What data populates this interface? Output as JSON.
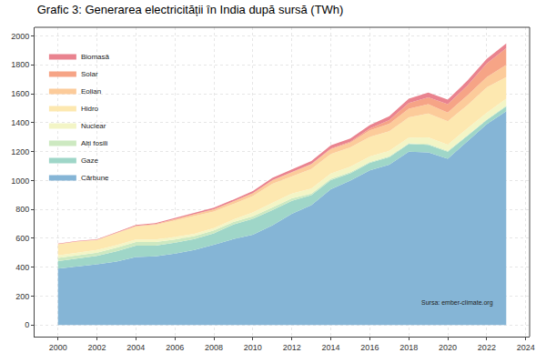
{
  "chart_data": {
    "type": "area",
    "title": "Grafic 3: Generarea electricității în India după sursă (TWh)",
    "annotations": [
      "Sursa: ember-climate.org"
    ],
    "x": [
      2000,
      2001,
      2002,
      2003,
      2004,
      2005,
      2006,
      2007,
      2008,
      2009,
      2010,
      2011,
      2012,
      2013,
      2014,
      2015,
      2016,
      2017,
      2018,
      2019,
      2020,
      2021,
      2022,
      2023
    ],
    "series": [
      {
        "name": "Cărbune",
        "color": "#85b5d6",
        "values": [
          390,
          405,
          420,
          440,
          470,
          475,
          495,
          520,
          555,
          595,
          625,
          690,
          770,
          830,
          940,
          1000,
          1070,
          1110,
          1200,
          1195,
          1150,
          1270,
          1390,
          1480
        ]
      },
      {
        "name": "Gaze",
        "color": "#9fd6c8",
        "values": [
          52,
          55,
          58,
          70,
          80,
          75,
          75,
          75,
          80,
          100,
          110,
          105,
          90,
          68,
          62,
          50,
          52,
          52,
          52,
          52,
          50,
          38,
          28,
          32
        ]
      },
      {
        "name": "Alți fosili",
        "color": "#cde9c1",
        "values": [
          22,
          22,
          22,
          25,
          25,
          25,
          22,
          20,
          20,
          18,
          18,
          18,
          16,
          12,
          10,
          8,
          7,
          6,
          6,
          6,
          5,
          5,
          5,
          6
        ]
      },
      {
        "name": "Nuclear",
        "color": "#f3f5c6",
        "values": [
          17,
          19,
          19,
          18,
          17,
          17,
          17,
          17,
          15,
          17,
          26,
          33,
          33,
          34,
          36,
          38,
          38,
          38,
          39,
          46,
          43,
          47,
          46,
          48
        ]
      },
      {
        "name": "Hidro",
        "color": "#fde8b0",
        "values": [
          78,
          76,
          68,
          80,
          90,
          100,
          115,
          124,
          116,
          108,
          114,
          132,
          118,
          135,
          135,
          133,
          135,
          135,
          140,
          165,
          162,
          160,
          175,
          150
        ]
      },
      {
        "name": "Eolian",
        "color": "#fccb9a",
        "values": [
          2,
          2,
          3,
          4,
          5,
          7,
          10,
          12,
          15,
          18,
          20,
          23,
          28,
          33,
          34,
          33,
          45,
          52,
          60,
          64,
          60,
          68,
          72,
          85
        ]
      },
      {
        "name": "Solar",
        "color": "#f6a486",
        "values": [
          0,
          0,
          0,
          0,
          0,
          0,
          0,
          0,
          0,
          0,
          0,
          1,
          2,
          3,
          5,
          7,
          13,
          25,
          39,
          48,
          58,
          68,
          94,
          115
        ]
      },
      {
        "name": "Biomasă",
        "color": "#e9838f",
        "values": [
          2,
          3,
          3,
          4,
          5,
          6,
          7,
          9,
          11,
          12,
          14,
          16,
          18,
          20,
          22,
          22,
          24,
          26,
          30,
          32,
          32,
          34,
          32,
          32
        ]
      }
    ],
    "stacked": true,
    "legend": "top left",
    "grid": true,
    "xlim": [
      1998.8,
      2024.2
    ],
    "xticks": [
      2000,
      2002,
      2004,
      2006,
      2008,
      2010,
      2012,
      2014,
      2016,
      2018,
      2020,
      2022,
      2024
    ],
    "ylim": [
      -80,
      2060
    ],
    "yticks": [
      0,
      200,
      400,
      600,
      800,
      1000,
      1200,
      1400,
      1600,
      1800,
      2000
    ]
  }
}
